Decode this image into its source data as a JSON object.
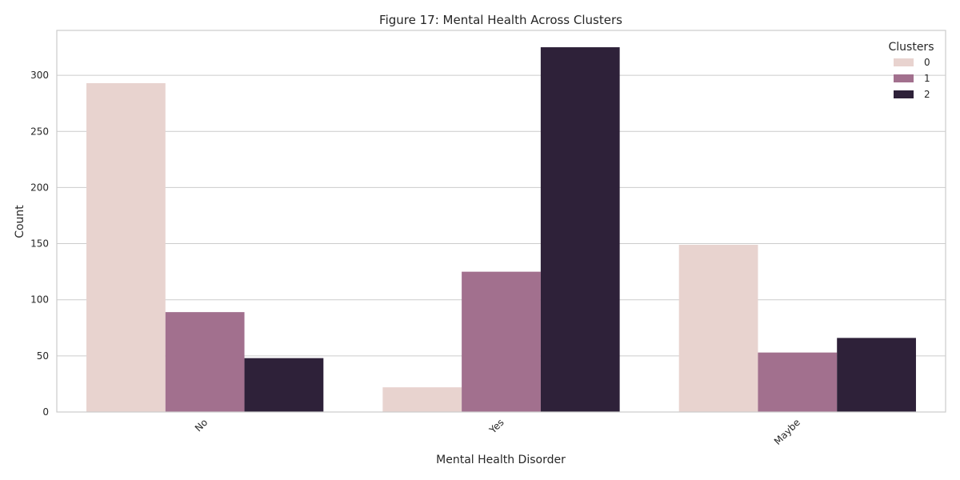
{
  "chart_data": {
    "type": "bar",
    "title": "Figure 17: Mental Health Across Clusters",
    "xlabel": "Mental Health Disorder",
    "ylabel": "Count",
    "categories": [
      "No",
      "Yes",
      "Maybe"
    ],
    "ylim": [
      0,
      340
    ],
    "yticks": [
      0,
      50,
      100,
      150,
      200,
      250,
      300
    ],
    "grid": true,
    "legend": {
      "title": "Clusters",
      "placement": "top-right"
    },
    "series": [
      {
        "name": "0",
        "color": "#e8d3cf",
        "values": [
          293,
          22,
          149
        ]
      },
      {
        "name": "1",
        "color": "#a2708e",
        "values": [
          89,
          125,
          53
        ]
      },
      {
        "name": "2",
        "color": "#2e2139",
        "values": [
          48,
          325,
          66
        ]
      }
    ]
  }
}
